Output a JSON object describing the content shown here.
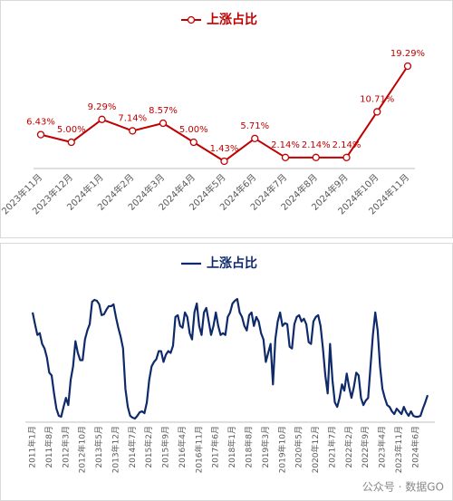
{
  "chart_data": [
    {
      "type": "line",
      "categories": [
        "2023年11月",
        "2023年12月",
        "2024年1月",
        "2024年2月",
        "2024年3月",
        "2024年4月",
        "2024年5月",
        "2024年6月",
        "2024年7月",
        "2024年8月",
        "2024年9月",
        "2024年10月",
        "2024年11月"
      ],
      "series": [
        {
          "name": "上涨占比",
          "color": "#c00000",
          "marker": "circle",
          "values": [
            6.43,
            5.0,
            9.29,
            7.14,
            8.57,
            5.0,
            1.43,
            5.71,
            2.14,
            2.14,
            2.14,
            10.71,
            19.29
          ],
          "value_labels": [
            "6.43%",
            "5.00%",
            "9.29%",
            "7.14%",
            "8.57%",
            "5.00%",
            "1.43%",
            "5.71%",
            "2.14%",
            "2.14%",
            "2.14%",
            "10.71%",
            "19.29%"
          ]
        }
      ]
    },
    {
      "type": "line",
      "categories": [
        "2011年1月",
        null,
        null,
        null,
        null,
        null,
        null,
        "2011年8月",
        null,
        null,
        null,
        null,
        null,
        null,
        "2012年3月",
        null,
        null,
        null,
        null,
        null,
        null,
        "2012年10月",
        null,
        null,
        null,
        null,
        null,
        null,
        "2013年5月",
        null,
        null,
        null,
        null,
        null,
        null,
        "2013年12月",
        null,
        null,
        null,
        null,
        null,
        null,
        "2014年7月",
        null,
        null,
        null,
        null,
        null,
        null,
        "2015年2月",
        null,
        null,
        null,
        null,
        null,
        null,
        "2015年9月",
        null,
        null,
        null,
        null,
        null,
        null,
        "2016年4月",
        null,
        null,
        null,
        null,
        null,
        null,
        "2016年11月",
        null,
        null,
        null,
        null,
        null,
        null,
        "2017年6月",
        null,
        null,
        null,
        null,
        null,
        null,
        "2018年1月",
        null,
        null,
        null,
        null,
        null,
        null,
        "2018年8月",
        null,
        null,
        null,
        null,
        null,
        null,
        "2019年3月",
        null,
        null,
        null,
        null,
        null,
        null,
        "2019年10月",
        null,
        null,
        null,
        null,
        null,
        null,
        "2020年5月",
        null,
        null,
        null,
        null,
        null,
        null,
        "2020年12月",
        null,
        null,
        null,
        null,
        null,
        null,
        "2021年7月",
        null,
        null,
        null,
        null,
        null,
        null,
        "2022年2月",
        null,
        null,
        null,
        null,
        null,
        null,
        "2022年9月",
        null,
        null,
        null,
        null,
        null,
        null,
        "2023年4月",
        null,
        null,
        null,
        null,
        null,
        null,
        "2023年11月",
        null,
        null,
        null,
        null,
        null,
        null,
        "2024年6月",
        null,
        null,
        null,
        null,
        null
      ],
      "series": [
        {
          "name": "上涨占比",
          "color": "#0f2a6b",
          "values": [
            120,
            107,
            95,
            97,
            85,
            80,
            70,
            53,
            50,
            30,
            13,
            5,
            4,
            15,
            25,
            17,
            45,
            60,
            88,
            75,
            67,
            67,
            90,
            100,
            107,
            132,
            134,
            133,
            129,
            117,
            118,
            123,
            127,
            127,
            129,
            115,
            103,
            93,
            80,
            35,
            15,
            5,
            3,
            2,
            5,
            9,
            10,
            8,
            20,
            45,
            60,
            65,
            68,
            77,
            77,
            65,
            73,
            77,
            75,
            83,
            115,
            117,
            105,
            103,
            120,
            115,
            97,
            90,
            120,
            130,
            105,
            95,
            120,
            125,
            110,
            95,
            105,
            120,
            105,
            95,
            97,
            95,
            115,
            120,
            130,
            133,
            135,
            120,
            115,
            105,
            100,
            117,
            120,
            105,
            115,
            110,
            97,
            90,
            65,
            75,
            85,
            40,
            90,
            110,
            120,
            105,
            108,
            107,
            82,
            80,
            107,
            115,
            117,
            110,
            113,
            107,
            87,
            85,
            110,
            115,
            117,
            105,
            80,
            50,
            30,
            85,
            45,
            20,
            15,
            25,
            40,
            33,
            52,
            37,
            25,
            37,
            53,
            50,
            25,
            17,
            22,
            25,
            60,
            95,
            120,
            100,
            60,
            35,
            25,
            17,
            15,
            10,
            7,
            13,
            10,
            7,
            15,
            9,
            5,
            10,
            5,
            4,
            4,
            5,
            13,
            20,
            28
          ]
        }
      ]
    }
  ],
  "watermark": "公众号 · 数据GO"
}
